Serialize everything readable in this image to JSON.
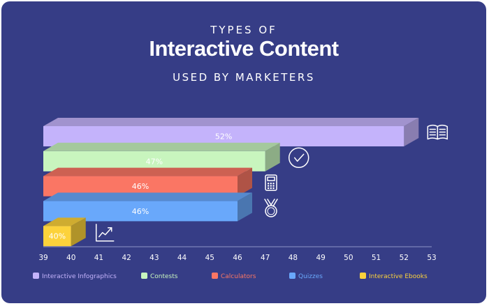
{
  "header": {
    "line1": "TYPES OF",
    "line2": "Interactive Content",
    "line3": "USED BY MARKETERS"
  },
  "chart_data": {
    "type": "bar",
    "orientation": "horizontal",
    "title": "Types of Interactive Content Used by Marketers",
    "xlim": [
      39,
      53
    ],
    "ticks": [
      39,
      40,
      41,
      42,
      43,
      44,
      45,
      46,
      47,
      48,
      49,
      50,
      51,
      52,
      53
    ],
    "categories": [
      "Interactive Infographics",
      "Contests",
      "Calculators",
      "Quizzes",
      "Interactive Ebooks"
    ],
    "values": [
      52,
      47,
      46,
      46,
      40
    ],
    "labels": [
      "52%",
      "47%",
      "46%",
      "46%",
      "40%"
    ],
    "icons": [
      "book-icon",
      "check-circle-icon",
      "calculator-icon",
      "medal-icon",
      "trend-chart-icon"
    ],
    "colors": [
      "#c4b3fb",
      "#c8f5be",
      "#fa7664",
      "#69a8fb",
      "#fcd23b"
    ],
    "legend_position": "bottom",
    "grid": false
  }
}
